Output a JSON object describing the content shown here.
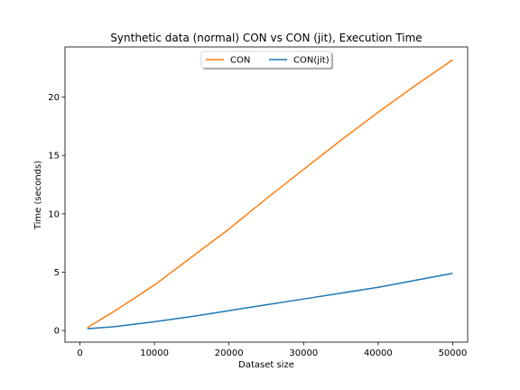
{
  "chart_data": {
    "type": "line",
    "title": "Synthetic data (normal) CON vs CON (jit), Execution Time",
    "xlabel": "Dataset size",
    "ylabel": "Time (seconds)",
    "xlim": [
      -2000,
      52000
    ],
    "ylim": [
      -1.0,
      24.3
    ],
    "xticks": [
      0,
      10000,
      20000,
      30000,
      40000,
      50000
    ],
    "yticks": [
      0,
      5,
      10,
      15,
      20
    ],
    "grid": false,
    "legend_position": "top-center",
    "series": [
      {
        "name": "CON",
        "color": "#ff7f0e",
        "x": [
          1000,
          5000,
          10000,
          15000,
          20000,
          25000,
          30000,
          35000,
          40000,
          45000,
          50000
        ],
        "y": [
          0.25,
          1.8,
          3.9,
          6.3,
          8.7,
          11.3,
          13.8,
          16.3,
          18.7,
          21.0,
          23.2
        ]
      },
      {
        "name": "CON(jit)",
        "color": "#1f77b4",
        "x": [
          1000,
          5000,
          10000,
          15000,
          20000,
          25000,
          30000,
          35000,
          40000,
          45000,
          50000
        ],
        "y": [
          0.15,
          0.35,
          0.75,
          1.2,
          1.7,
          2.2,
          2.7,
          3.2,
          3.7,
          4.3,
          4.9
        ]
      }
    ]
  }
}
